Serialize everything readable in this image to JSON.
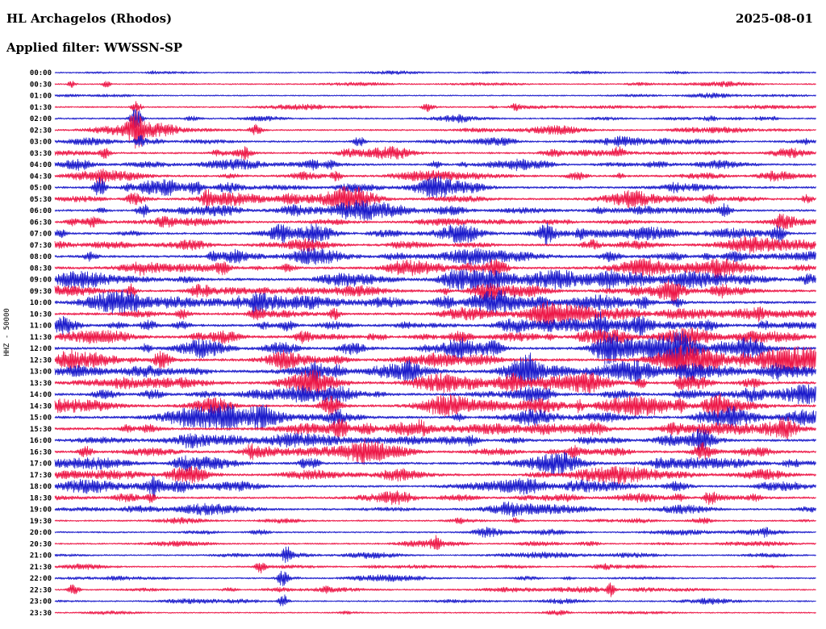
{
  "header": {
    "station_title": "HL Archagelos (Rhodos)",
    "date": "2025-08-01",
    "filter_label": "Applied filter: WWSSN-SP"
  },
  "axis": {
    "left_label": "HHZ - 50000"
  },
  "chart_data": {
    "type": "line",
    "subtype": "helicorder-seismogram",
    "station": "HL Archagelos (Rhodos)",
    "channel": "HHZ",
    "scale": 50000,
    "date": "2025-08-01",
    "filter": "WWSSN-SP",
    "minutes_per_row": 30,
    "rows": 48,
    "row_labels": [
      "00:00",
      "00:30",
      "01:00",
      "01:30",
      "02:00",
      "02:30",
      "03:00",
      "03:30",
      "04:00",
      "04:30",
      "05:00",
      "05:30",
      "06:00",
      "06:30",
      "07:00",
      "07:30",
      "08:00",
      "08:30",
      "09:00",
      "09:30",
      "10:00",
      "10:30",
      "11:00",
      "11:30",
      "12:00",
      "12:30",
      "13:00",
      "13:30",
      "14:00",
      "14:30",
      "15:00",
      "15:30",
      "16:00",
      "16:30",
      "17:00",
      "17:30",
      "18:00",
      "18:30",
      "19:00",
      "19:30",
      "20:00",
      "20:30",
      "21:00",
      "21:30",
      "22:00",
      "22:30",
      "23:00",
      "23:30"
    ],
    "trace_colors": {
      "even": "#1a1acb",
      "odd": "#ed1747"
    },
    "label_color": "#000000",
    "legend": "alternating blue/red traces, one per 30 minutes, times UTC on left",
    "row_activity": [
      0.55,
      0.6,
      0.55,
      0.75,
      0.9,
      0.9,
      1.1,
      1.2,
      1.5,
      1.5,
      1.6,
      1.6,
      1.5,
      1.6,
      1.7,
      1.7,
      1.9,
      2.0,
      2.1,
      2.0,
      2.1,
      2.0,
      2.0,
      2.1,
      2.2,
      2.3,
      2.2,
      2.1,
      2.0,
      2.0,
      2.0,
      2.0,
      1.9,
      1.8,
      1.8,
      1.7,
      1.6,
      1.5,
      1.3,
      0.9,
      0.85,
      0.8,
      0.8,
      0.75,
      0.8,
      0.8,
      0.7,
      0.5
    ],
    "events": [
      {
        "row": 1,
        "pos": 0.022,
        "amp": 4,
        "width": 3
      },
      {
        "row": 1,
        "pos": 0.068,
        "amp": 4.5,
        "width": 3
      },
      {
        "row": 3,
        "pos": 0.107,
        "amp": 7,
        "width": 4
      },
      {
        "row": 3,
        "pos": 0.49,
        "amp": 5,
        "width": 5
      },
      {
        "row": 3,
        "pos": 0.605,
        "amp": 4,
        "width": 4
      },
      {
        "row": 4,
        "pos": 0.107,
        "amp": 13,
        "width": 5
      },
      {
        "row": 5,
        "pos": 0.108,
        "amp": 22,
        "width": 8
      },
      {
        "row": 5,
        "pos": 0.14,
        "amp": 8,
        "width": 16
      },
      {
        "row": 5,
        "pos": 0.265,
        "amp": 5,
        "width": 5
      },
      {
        "row": 6,
        "pos": 0.112,
        "amp": 7,
        "width": 5
      },
      {
        "row": 6,
        "pos": 0.4,
        "amp": 6,
        "width": 5
      },
      {
        "row": 7,
        "pos": 0.066,
        "amp": 6,
        "width": 4
      },
      {
        "row": 7,
        "pos": 0.25,
        "amp": 6,
        "width": 5
      },
      {
        "row": 7,
        "pos": 0.74,
        "amp": 6,
        "width": 5
      },
      {
        "row": 9,
        "pos": 0.06,
        "amp": 6,
        "width": 4
      },
      {
        "row": 10,
        "pos": 0.06,
        "amp": 8,
        "width": 5
      },
      {
        "row": 10,
        "pos": 0.12,
        "amp": 7,
        "width": 7
      },
      {
        "row": 10,
        "pos": 0.185,
        "amp": 8,
        "width": 6
      },
      {
        "row": 11,
        "pos": 0.105,
        "amp": 7,
        "width": 6
      },
      {
        "row": 11,
        "pos": 0.2,
        "amp": 8,
        "width": 5
      },
      {
        "row": 11,
        "pos": 0.86,
        "amp": 7,
        "width": 5
      },
      {
        "row": 12,
        "pos": 0.115,
        "amp": 8,
        "width": 5
      },
      {
        "row": 12,
        "pos": 0.88,
        "amp": 7,
        "width": 5
      },
      {
        "row": 13,
        "pos": 0.955,
        "amp": 8,
        "width": 5
      },
      {
        "row": 14,
        "pos": 0.645,
        "amp": 8,
        "width": 5
      },
      {
        "row": 14,
        "pos": 0.95,
        "amp": 9,
        "width": 6
      },
      {
        "row": 17,
        "pos": 0.575,
        "amp": 7,
        "width": 7
      },
      {
        "row": 19,
        "pos": 0.1,
        "amp": 8,
        "width": 4
      },
      {
        "row": 20,
        "pos": 0.265,
        "amp": 11,
        "width": 6
      },
      {
        "row": 21,
        "pos": 0.265,
        "amp": 7,
        "width": 6
      },
      {
        "row": 22,
        "pos": 0.715,
        "amp": 10,
        "width": 6
      },
      {
        "row": 24,
        "pos": 0.72,
        "amp": 7,
        "width": 6
      },
      {
        "row": 26,
        "pos": 0.615,
        "amp": 10,
        "width": 9
      },
      {
        "row": 27,
        "pos": 0.6,
        "amp": 7,
        "width": 10
      },
      {
        "row": 30,
        "pos": 0.37,
        "amp": 8,
        "width": 6
      },
      {
        "row": 31,
        "pos": 0.375,
        "amp": 10,
        "width": 7
      },
      {
        "row": 32,
        "pos": 0.85,
        "amp": 10,
        "width": 7
      },
      {
        "row": 33,
        "pos": 0.85,
        "amp": 7,
        "width": 6
      },
      {
        "row": 36,
        "pos": 0.13,
        "amp": 9,
        "width": 5
      },
      {
        "row": 37,
        "pos": 0.125,
        "amp": 7,
        "width": 4
      },
      {
        "row": 37,
        "pos": 0.86,
        "amp": 7,
        "width": 5
      },
      {
        "row": 41,
        "pos": 0.5,
        "amp": 7,
        "width": 4
      },
      {
        "row": 42,
        "pos": 0.305,
        "amp": 8,
        "width": 4
      },
      {
        "row": 43,
        "pos": 0.27,
        "amp": 7,
        "width": 4
      },
      {
        "row": 44,
        "pos": 0.3,
        "amp": 10,
        "width": 5
      },
      {
        "row": 45,
        "pos": 0.025,
        "amp": 9,
        "width": 4
      },
      {
        "row": 45,
        "pos": 0.73,
        "amp": 8,
        "width": 4
      },
      {
        "row": 46,
        "pos": 0.3,
        "amp": 8,
        "width": 4
      }
    ]
  }
}
